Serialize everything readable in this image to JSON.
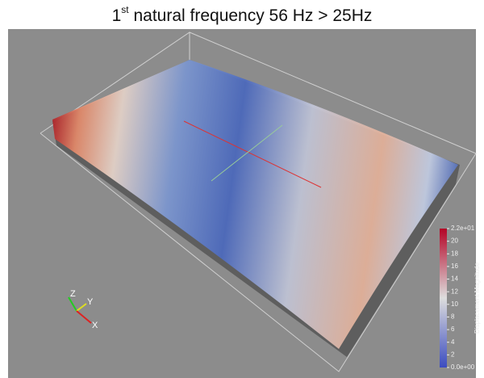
{
  "header": {
    "title": {
      "number": "1",
      "superscript": "st",
      "text": " natural frequency 56 Hz > 25Hz"
    }
  },
  "colorbar": {
    "title": "Displacement Magnitude",
    "lim": [
      0,
      22
    ],
    "ticks": [
      {
        "value": 0,
        "label": "0.0e+00"
      },
      2,
      4,
      6,
      8,
      10,
      12,
      14,
      16,
      18,
      20,
      {
        "value": 22,
        "label": "2.2e+01"
      }
    ]
  },
  "axes_gizmo": {
    "x": "X",
    "y": "Y",
    "z": "Z"
  }
}
